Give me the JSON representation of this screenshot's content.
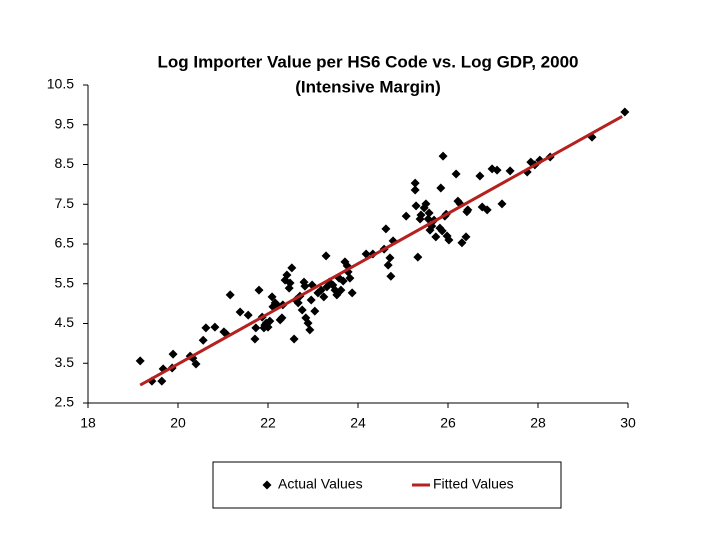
{
  "chart_data": {
    "type": "scatter",
    "title": "Log Importer Value per HS6 Code vs. Log GDP, 2000",
    "subtitle": "(Intensive Margin)",
    "xlim": [
      18,
      30
    ],
    "xticks": [
      18,
      20,
      22,
      24,
      26,
      28,
      30
    ],
    "ylim": [
      2.5,
      10.5
    ],
    "yticks": [
      2.5,
      3.5,
      4.5,
      5.5,
      6.5,
      7.5,
      8.5,
      9.5,
      10.5
    ],
    "grid": false,
    "legend": "bottom",
    "series": [
      {
        "name": "Actual Values",
        "color": "#000000",
        "mode": "markers",
        "x": [
          19.16,
          19.42,
          19.64,
          19.67,
          19.89,
          19.87,
          20.27,
          20.33,
          20.4,
          20.56,
          20.62,
          20.82,
          21.02,
          21.07,
          21.16,
          21.38,
          21.56,
          21.71,
          21.73,
          21.8,
          21.87,
          21.91,
          21.93,
          21.96,
          22.0,
          22.04,
          22.09,
          22.11,
          22.16,
          22.2,
          22.27,
          22.31,
          22.33,
          22.38,
          22.42,
          22.47,
          22.49,
          22.53,
          22.58,
          22.62,
          22.67,
          22.71,
          22.76,
          22.8,
          22.82,
          22.84,
          22.89,
          22.93,
          22.96,
          22.98,
          23.04,
          23.11,
          23.18,
          23.24,
          23.29,
          23.31,
          23.36,
          23.44,
          23.49,
          23.53,
          23.58,
          23.62,
          23.67,
          23.71,
          23.76,
          23.78,
          23.82,
          23.87,
          24.18,
          24.33,
          24.58,
          24.62,
          24.67,
          24.71,
          24.73,
          24.78,
          25.07,
          25.27,
          25.27,
          25.29,
          25.33,
          25.38,
          25.4,
          25.47,
          25.51,
          25.56,
          25.58,
          25.6,
          25.64,
          25.69,
          25.73,
          25.82,
          25.84,
          25.87,
          25.89,
          25.93,
          25.96,
          25.98,
          26.02,
          26.18,
          26.22,
          26.27,
          26.31,
          26.4,
          26.42,
          26.44,
          26.71,
          26.76,
          26.87,
          26.98,
          27.09,
          27.2,
          27.38,
          27.76,
          27.84,
          27.93,
          28.04,
          28.27,
          29.2,
          29.93
        ],
        "values": [
          3.56,
          3.05,
          3.05,
          3.36,
          3.73,
          3.38,
          3.68,
          3.63,
          3.48,
          4.08,
          4.39,
          4.41,
          4.29,
          4.24,
          5.22,
          4.79,
          4.71,
          4.11,
          4.39,
          5.34,
          4.66,
          4.39,
          4.46,
          4.51,
          4.41,
          4.56,
          5.17,
          4.92,
          5.02,
          4.97,
          4.59,
          4.64,
          4.97,
          5.59,
          5.72,
          5.39,
          5.52,
          5.9,
          4.11,
          5.09,
          5.02,
          5.19,
          4.84,
          5.54,
          5.44,
          4.64,
          4.51,
          4.34,
          5.09,
          5.47,
          4.81,
          5.27,
          5.34,
          5.17,
          6.2,
          5.42,
          5.54,
          5.47,
          5.34,
          5.22,
          5.64,
          5.34,
          5.57,
          6.05,
          5.95,
          5.8,
          5.64,
          5.27,
          6.25,
          6.25,
          6.37,
          6.88,
          5.97,
          6.15,
          5.69,
          6.58,
          7.2,
          8.03,
          7.86,
          7.46,
          6.17,
          7.13,
          7.23,
          7.41,
          7.51,
          7.13,
          7.28,
          6.85,
          6.95,
          7.1,
          6.68,
          6.9,
          7.91,
          6.83,
          8.71,
          7.2,
          7.25,
          6.7,
          6.6,
          8.26,
          7.58,
          7.51,
          6.53,
          6.68,
          7.31,
          7.36,
          8.21,
          7.43,
          7.36,
          8.39,
          8.36,
          7.51,
          8.34,
          8.31,
          8.56,
          8.49,
          8.61,
          8.69,
          9.19,
          9.82
        ]
      },
      {
        "name": "Fitted Values",
        "color": "#b5211f",
        "mode": "line",
        "x": [
          19.16,
          29.87
        ],
        "values": [
          2.95,
          9.71
        ]
      }
    ]
  }
}
